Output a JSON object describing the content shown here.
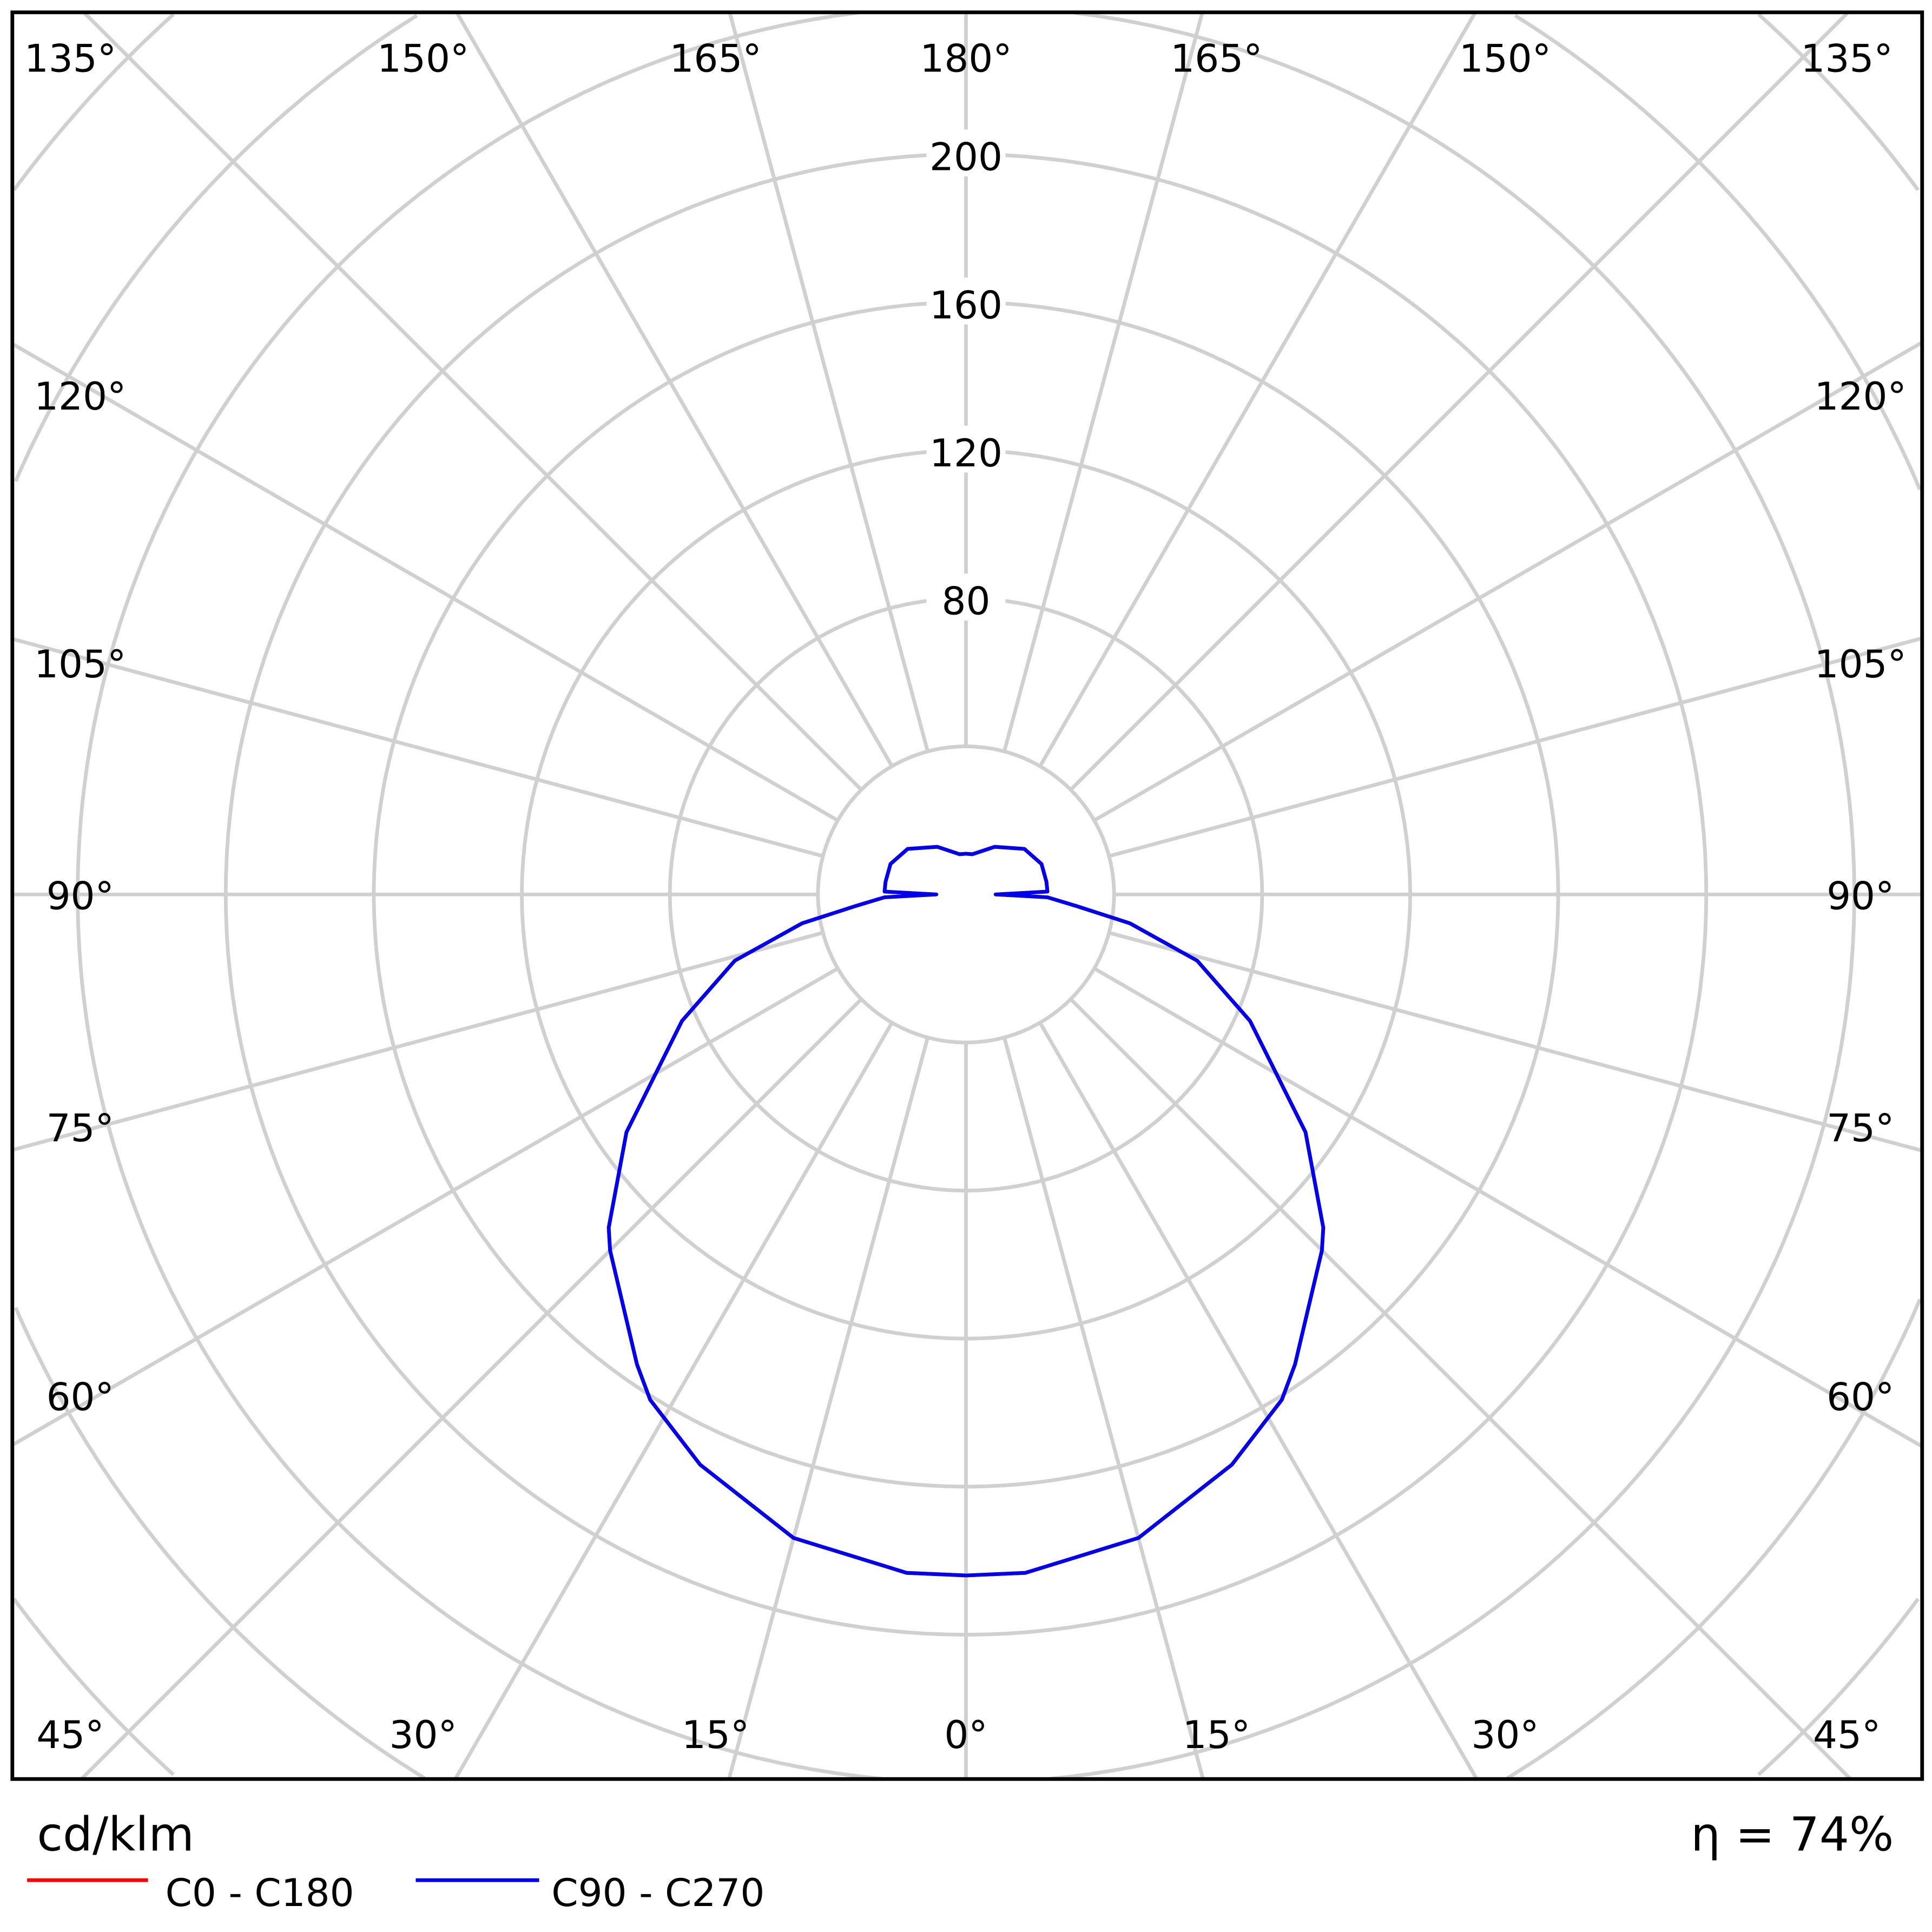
{
  "chart_data": {
    "type": "polar-line",
    "unit_label": "cd/klm",
    "efficiency_label": "η = 74%",
    "radial_ticks": [
      80,
      120,
      160,
      200
    ],
    "radial_grid_step": 40,
    "angle_labels_top": [
      "135°",
      "150°",
      "165°",
      "180°",
      "165°",
      "150°",
      "135°"
    ],
    "angle_labels_side": [
      "120°",
      "105°",
      "90°",
      "75°",
      "60°"
    ],
    "angle_labels_bottom": [
      "45°",
      "30°",
      "15°",
      "0°",
      "15°",
      "30°",
      "45°"
    ],
    "grid": true,
    "legend_position": "bottom-left",
    "series": [
      {
        "name": "C0 - C180",
        "color": "#ff0000",
        "angles": [
          0,
          5,
          15,
          25,
          32,
          35,
          45,
          47,
          55,
          66,
          74,
          80,
          84,
          88,
          90,
          92,
          99,
          112,
          128,
          149,
          171,
          180
        ],
        "values": [
          184,
          184,
          180,
          170,
          161,
          155,
          136,
          132,
          112,
          84,
          65,
          45,
          30,
          22,
          8,
          22,
          22,
          22,
          20,
          15,
          11,
          11
        ]
      },
      {
        "name": "C90 - C270",
        "color": "#0000ee",
        "angles": [
          0,
          5,
          15,
          25,
          32,
          35,
          45,
          47,
          55,
          66,
          74,
          80,
          84,
          88,
          90,
          92,
          99,
          112,
          128,
          149,
          171,
          180
        ],
        "values": [
          184,
          184,
          180,
          170,
          161,
          155,
          136,
          132,
          112,
          84,
          65,
          45,
          30,
          22,
          8,
          22,
          22,
          22,
          20,
          15,
          11,
          11
        ]
      }
    ]
  }
}
